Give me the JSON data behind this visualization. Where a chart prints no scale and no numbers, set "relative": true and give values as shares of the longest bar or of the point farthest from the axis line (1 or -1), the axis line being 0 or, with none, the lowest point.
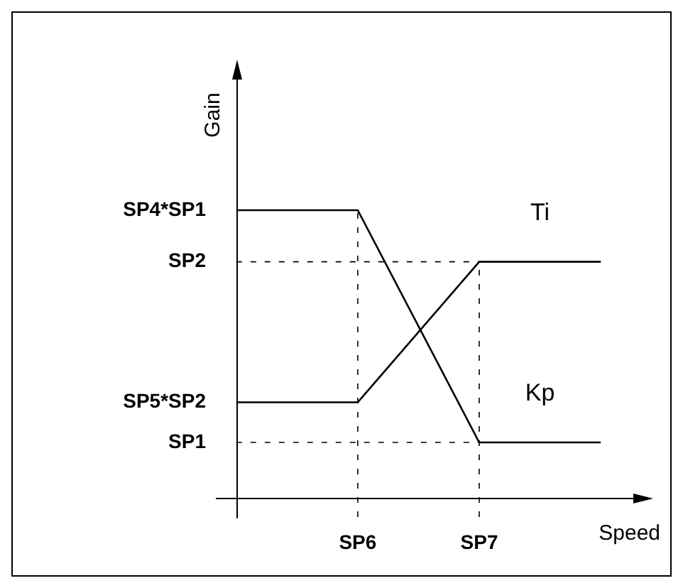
{
  "chart_data": {
    "type": "line",
    "relative": true,
    "xlabel": "Speed",
    "ylabel": "Gain",
    "categories": [
      null,
      "SP6",
      "SP7",
      null
    ],
    "series": [
      {
        "name": "Ti",
        "color": "#000000",
        "values": [
          0.33,
          0.33,
          0.82,
          0.82
        ]
      },
      {
        "name": "Kp",
        "color": "#000000",
        "values": [
          1,
          1,
          0.19,
          0.19
        ]
      }
    ],
    "annotations": [
      "SP4*SP1",
      "SP2",
      "SP5*SP2",
      "SP1"
    ],
    "ref_lines": [
      {
        "axis": "y",
        "value": 0.82,
        "line_style": "dashed"
      },
      {
        "axis": "y",
        "value": 0.19,
        "line_style": "dashed"
      },
      {
        "axis": "x",
        "value": "SP6",
        "line_style": "dashed"
      },
      {
        "axis": "x",
        "value": "SP7",
        "line_style": "dashed"
      }
    ],
    "legend": false,
    "grid": false,
    "marker": "none",
    "line_style": "solid"
  }
}
